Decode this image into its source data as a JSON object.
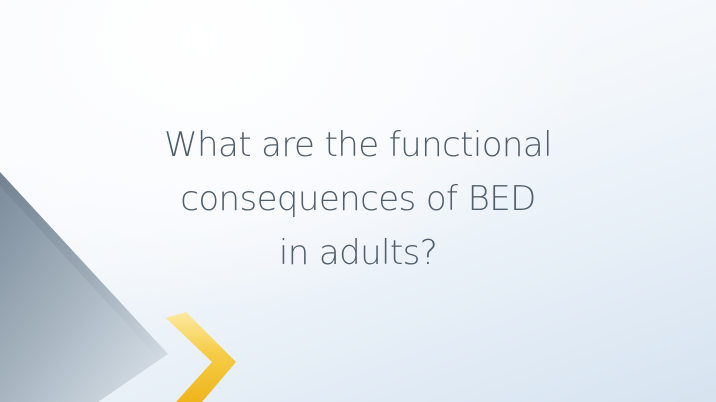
{
  "slide": {
    "question_lines": [
      "What are the functional",
      "consequences of BED",
      "in adults?"
    ]
  },
  "colors": {
    "text": "#4f5e6a",
    "background_light": "#ffffff",
    "background_blue": "#d6e3f0",
    "triangle_gray": "#8e9dab",
    "chevron_gold": "#f4c431"
  }
}
